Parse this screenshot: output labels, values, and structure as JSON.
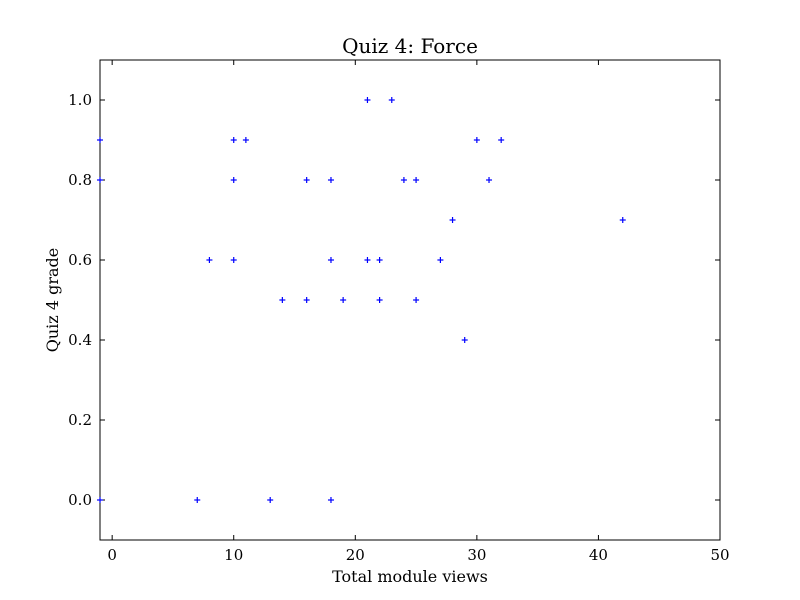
{
  "chart_data": {
    "type": "scatter",
    "title": "Quiz 4: Force",
    "xlabel": "Total module views",
    "ylabel": "Quiz 4 grade",
    "xlim": [
      -1,
      50
    ],
    "ylim": [
      -0.1,
      1.1
    ],
    "x_ticks": [
      0,
      10,
      20,
      30,
      40,
      50
    ],
    "y_ticks": [
      0.0,
      0.2,
      0.4,
      0.6,
      0.8,
      1.0
    ],
    "x_tick_labels": [
      "0",
      "10",
      "20",
      "30",
      "40",
      "50"
    ],
    "y_tick_labels": [
      "0.0",
      "0.2",
      "0.4",
      "0.6",
      "0.8",
      "1.0"
    ],
    "grid": false,
    "legend": "none",
    "marker": "+",
    "marker_color": "#0000ff",
    "points": [
      {
        "x": -1,
        "y": 0.9
      },
      {
        "x": -1,
        "y": 0.8
      },
      {
        "x": -1,
        "y": 0.0
      },
      {
        "x": 7,
        "y": 0.0
      },
      {
        "x": 8,
        "y": 0.6
      },
      {
        "x": 10,
        "y": 0.9
      },
      {
        "x": 10,
        "y": 0.8
      },
      {
        "x": 10,
        "y": 0.6
      },
      {
        "x": 11,
        "y": 0.9
      },
      {
        "x": 13,
        "y": 0.0
      },
      {
        "x": 14,
        "y": 0.5
      },
      {
        "x": 16,
        "y": 0.8
      },
      {
        "x": 16,
        "y": 0.5
      },
      {
        "x": 18,
        "y": 0.8
      },
      {
        "x": 18,
        "y": 0.6
      },
      {
        "x": 18,
        "y": 0.0
      },
      {
        "x": 19,
        "y": 0.5
      },
      {
        "x": 21,
        "y": 1.0
      },
      {
        "x": 21,
        "y": 0.6
      },
      {
        "x": 22,
        "y": 0.6
      },
      {
        "x": 22,
        "y": 0.5
      },
      {
        "x": 23,
        "y": 1.0
      },
      {
        "x": 24,
        "y": 0.8
      },
      {
        "x": 25,
        "y": 0.8
      },
      {
        "x": 25,
        "y": 0.5
      },
      {
        "x": 27,
        "y": 0.6
      },
      {
        "x": 28,
        "y": 0.7
      },
      {
        "x": 29,
        "y": 0.4
      },
      {
        "x": 30,
        "y": 0.9
      },
      {
        "x": 31,
        "y": 0.8
      },
      {
        "x": 32,
        "y": 0.9
      },
      {
        "x": 42,
        "y": 0.7
      }
    ]
  }
}
